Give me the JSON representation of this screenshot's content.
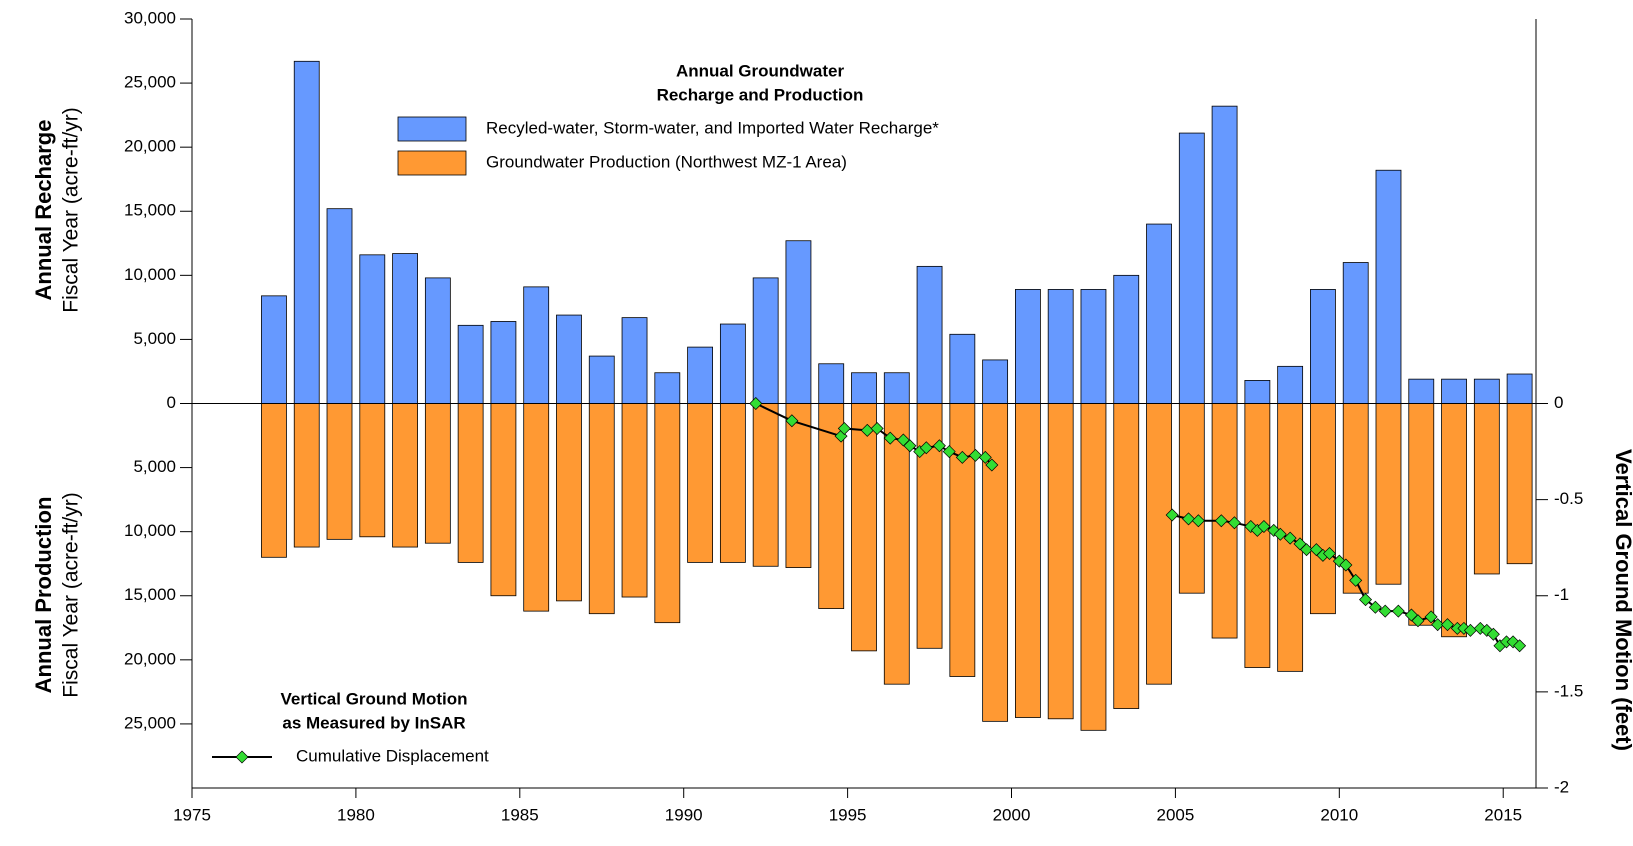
{
  "chart_data": {
    "type": "bar",
    "legend_title": [
      "Annual Groundwater",
      "Recharge and Production"
    ],
    "line_legend_title": [
      "Vertical Ground Motion",
      "as Measured by InSAR"
    ],
    "y_label_top": [
      "Annual Recharge",
      "Fiscal Year (acre-ft/yr)"
    ],
    "y_label_bottom": [
      "Annual Production",
      "Fiscal Year (acre-ft/yr)"
    ],
    "y2_label": "Vertical Ground Motion (feet)",
    "x": [
      1977.5,
      1978.5,
      1979.5,
      1980.5,
      1981.5,
      1982.5,
      1983.5,
      1984.5,
      1985.5,
      1986.5,
      1987.5,
      1988.5,
      1989.5,
      1990.5,
      1991.5,
      1992.5,
      1993.5,
      1994.5,
      1995.5,
      1996.5,
      1997.5,
      1998.5,
      1999.5,
      2000.5,
      2001.5,
      2002.5,
      2003.5,
      2004.5,
      2005.5,
      2006.5,
      2007.5,
      2008.5,
      2009.5,
      2010.5,
      2011.5,
      2012.5,
      2013.5,
      2014.5,
      2015.5
    ],
    "series": [
      {
        "name": "Recyled-water, Storm-water, and Imported Water Recharge*",
        "color": "#6699ff",
        "values": [
          8400,
          26700,
          15200,
          11600,
          11700,
          9800,
          6100,
          6400,
          9100,
          6900,
          3700,
          6700,
          2400,
          4400,
          6200,
          9800,
          12700,
          3100,
          2400,
          2400,
          10700,
          5400,
          3400,
          8900,
          8900,
          8900,
          10000,
          14000,
          21100,
          23200,
          1800,
          2900,
          8900,
          11000,
          18200,
          1900,
          1900,
          1900,
          2300
        ]
      },
      {
        "name": "Groundwater Production (Northwest MZ-1 Area)",
        "color": "#ff9933",
        "values": [
          -12000,
          -11200,
          -10600,
          -10400,
          -11200,
          -10900,
          -12400,
          -15000,
          -16200,
          -15400,
          -16400,
          -15100,
          -17100,
          -12400,
          -12400,
          -12700,
          -12800,
          -16000,
          -19300,
          -21900,
          -19100,
          -21300,
          -24800,
          -24500,
          -24600,
          -25500,
          -23800,
          -21900,
          -14800,
          -18300,
          -20600,
          -20900,
          -16400,
          -14800,
          -14100,
          -17300,
          -18200,
          -13300,
          -12500
        ]
      }
    ],
    "line_series": {
      "name": "Cumulative Displacement",
      "type": "line",
      "axis": "y2",
      "color": "#000000",
      "marker_color": "#33dd33",
      "x": [
        1992.2,
        1993.3,
        1994.8,
        1994.9,
        1995.6,
        1995.9,
        1996.3,
        1996.7,
        1996.9,
        1997.2,
        1997.4,
        1997.8,
        1998.1,
        1998.5,
        1998.9,
        1999.2,
        1999.4,
        null,
        2004.9,
        2005.4,
        2005.7,
        2006.4,
        2006.8,
        2007.3,
        2007.5,
        2007.7,
        2008.0,
        2008.2,
        2008.5,
        2008.8,
        2009.0,
        2009.3,
        2009.5,
        2009.7,
        2010.0,
        2010.2,
        2010.5,
        2010.8,
        2011.1,
        2011.4,
        2011.8,
        2012.2,
        2012.4,
        2012.8,
        2013.0,
        2013.3,
        2013.6,
        2013.8,
        2014.0,
        2014.3,
        2014.5,
        2014.7,
        2014.9,
        2015.1,
        2015.3,
        2015.5
      ],
      "values": [
        0,
        -0.09,
        -0.17,
        -0.13,
        -0.14,
        -0.13,
        -0.18,
        -0.19,
        -0.22,
        -0.25,
        -0.23,
        -0.22,
        -0.25,
        -0.28,
        -0.27,
        -0.28,
        -0.32,
        null,
        -0.58,
        -0.6,
        -0.61,
        -0.61,
        -0.62,
        -0.64,
        -0.66,
        -0.64,
        -0.66,
        -0.68,
        -0.7,
        -0.73,
        -0.76,
        -0.76,
        -0.79,
        -0.78,
        -0.82,
        -0.84,
        -0.92,
        -1.02,
        -1.06,
        -1.08,
        -1.08,
        -1.1,
        -1.13,
        -1.11,
        -1.15,
        -1.15,
        -1.17,
        -1.17,
        -1.18,
        -1.17,
        -1.18,
        -1.2,
        -1.26,
        -1.24,
        -1.24,
        -1.26
      ]
    },
    "xlim": [
      1975,
      2016
    ],
    "xticks": [
      1975,
      1980,
      1985,
      1990,
      1995,
      2000,
      2005,
      2010,
      2015
    ],
    "ylim": [
      -30000,
      30000
    ],
    "yticks": [
      {
        "value": 30000,
        "label": "30,000"
      },
      {
        "value": 25000,
        "label": "25,000"
      },
      {
        "value": 20000,
        "label": "20,000"
      },
      {
        "value": 15000,
        "label": "15,000"
      },
      {
        "value": 10000,
        "label": "10,000"
      },
      {
        "value": 5000,
        "label": "5,000"
      },
      0,
      {
        "value": -5000,
        "label": "5,000"
      },
      {
        "value": -10000,
        "label": "10,000"
      },
      {
        "value": -15000,
        "label": "15,000"
      },
      {
        "value": -20000,
        "label": "20,000"
      },
      {
        "value": -25000,
        "label": "25,000"
      }
    ],
    "y2lim": [
      -2,
      2
    ],
    "y2ticks": [
      0,
      -0.5,
      -1,
      -1.5,
      -2
    ]
  }
}
